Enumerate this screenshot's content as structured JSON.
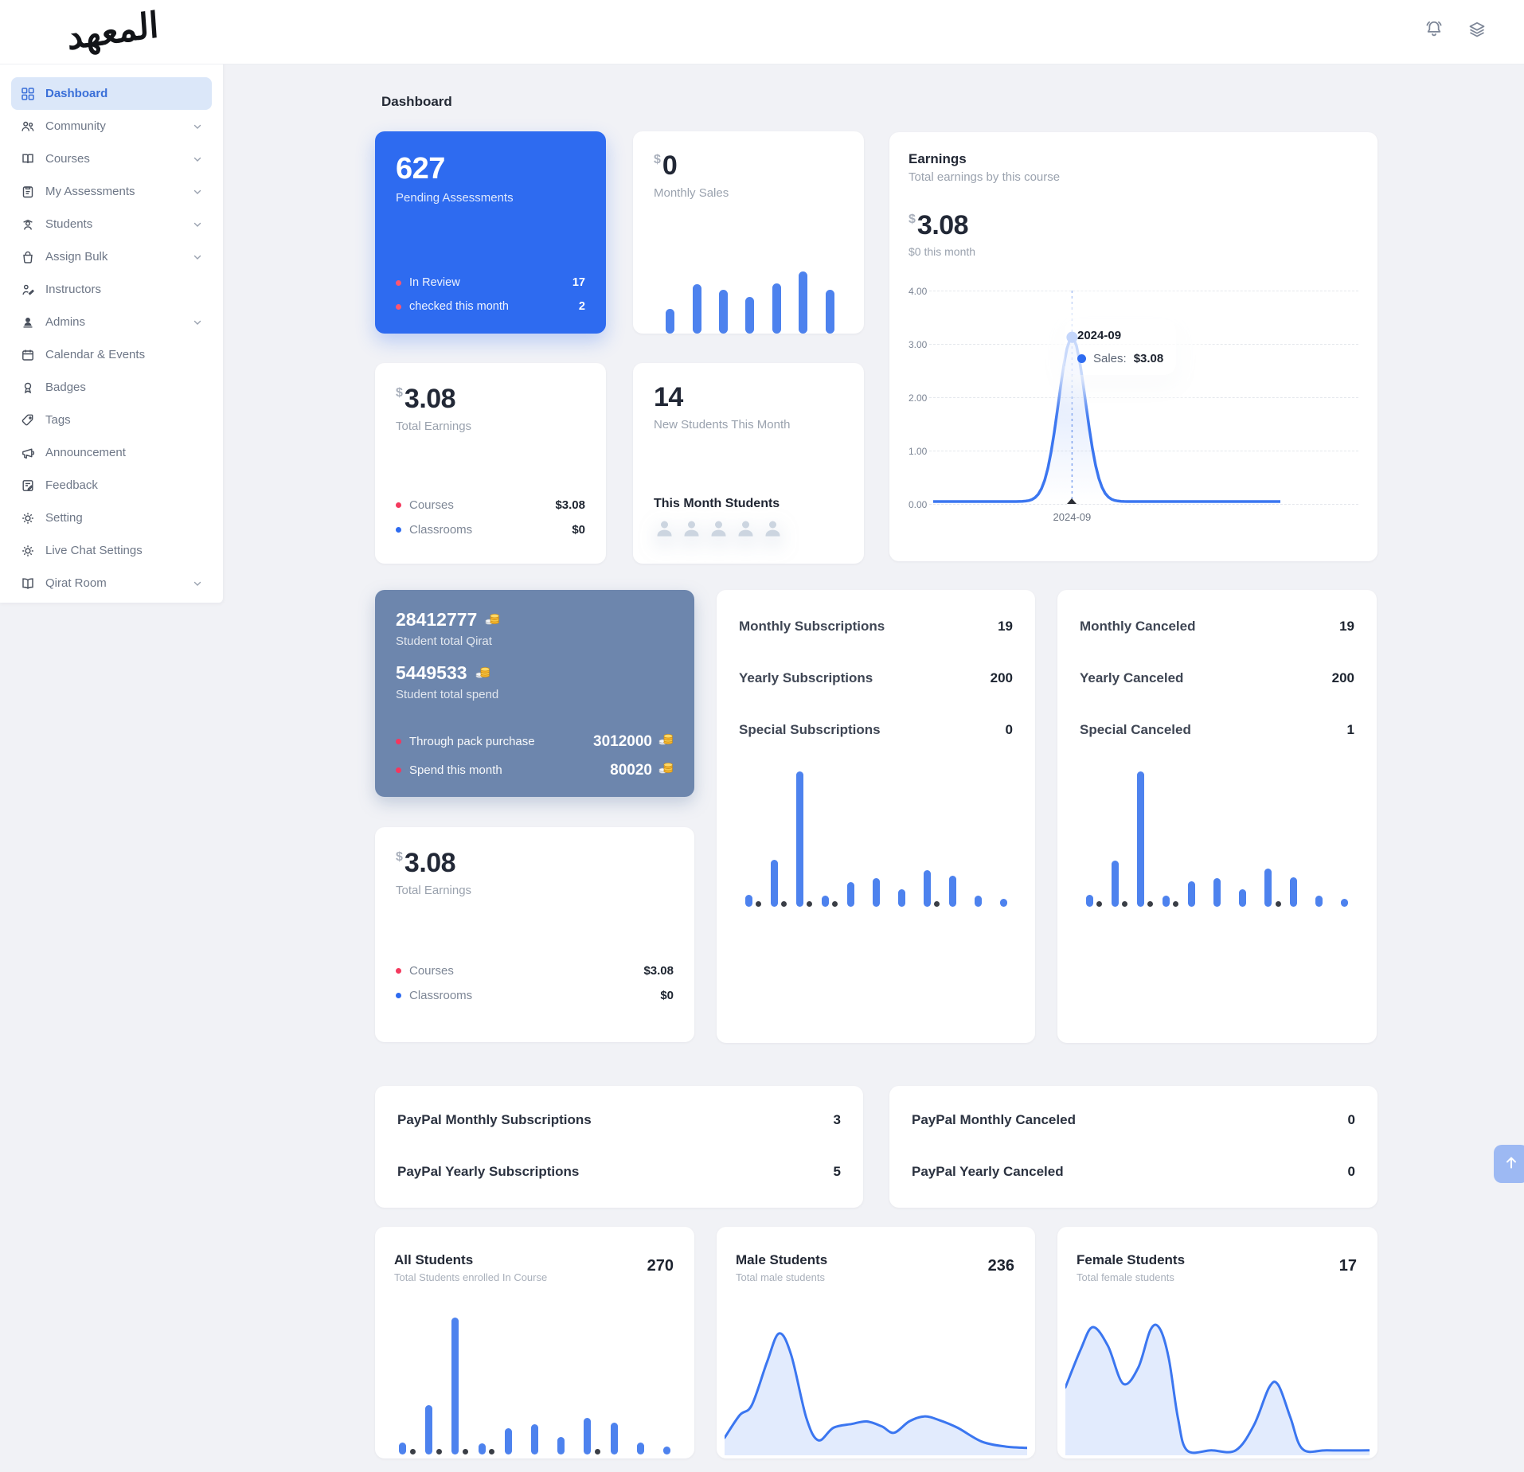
{
  "logo": {
    "text": "المعهد"
  },
  "topbar": {
    "icons": [
      "bell-icon",
      "layers-icon"
    ]
  },
  "page": {
    "title": "Dashboard"
  },
  "sidebar": {
    "items": [
      {
        "label": "Dashboard",
        "icon": "dashboard-icon",
        "active": true,
        "chevron": false
      },
      {
        "label": "Community",
        "icon": "community-icon",
        "chevron": true
      },
      {
        "label": "Courses",
        "icon": "courses-icon",
        "chevron": true
      },
      {
        "label": "My Assessments",
        "icon": "assessments-icon",
        "chevron": true
      },
      {
        "label": "Students",
        "icon": "students-icon",
        "chevron": true
      },
      {
        "label": "Assign Bulk",
        "icon": "assign-bulk-icon",
        "chevron": true
      },
      {
        "label": "Instructors",
        "icon": "instructors-icon",
        "chevron": false
      },
      {
        "label": "Admins",
        "icon": "admins-icon",
        "chevron": true
      },
      {
        "label": "Calendar & Events",
        "icon": "calendar-icon",
        "chevron": false
      },
      {
        "label": "Badges",
        "icon": "badges-icon",
        "chevron": false
      },
      {
        "label": "Tags",
        "icon": "tags-icon",
        "chevron": false
      },
      {
        "label": "Announcement",
        "icon": "announcement-icon",
        "chevron": false
      },
      {
        "label": "Feedback",
        "icon": "feedback-icon",
        "chevron": false
      },
      {
        "label": "Setting",
        "icon": "setting-icon",
        "chevron": false
      },
      {
        "label": "Live Chat Settings",
        "icon": "live-chat-settings-icon",
        "chevron": false
      },
      {
        "label": "Qirat Room",
        "icon": "qirat-room-icon",
        "chevron": true
      }
    ]
  },
  "cards": {
    "pending_assessments": {
      "value": "627",
      "label": "Pending Assessments",
      "rows": [
        {
          "label": "In Review",
          "value": "17"
        },
        {
          "label": "checked this month",
          "value": "2"
        }
      ]
    },
    "monthly_sales": {
      "currency": "$",
      "value": "0",
      "label": "Monthly Sales",
      "chart_data": {
        "type": "bar",
        "values": [
          40,
          80,
          71,
          59,
          81,
          100,
          70
        ]
      }
    },
    "earnings": {
      "title": "Earnings",
      "subtitle": "Total earnings by this course",
      "currency": "$",
      "value": "3.08",
      "this_month": "$0 this month",
      "chart_data": {
        "type": "line",
        "ylim": [
          0,
          4
        ],
        "yticks": [
          "4.00",
          "3.00",
          "2.00",
          "1.00",
          "0.00"
        ],
        "x_tick": "2024-09",
        "peak_value": 3.08,
        "peak_position_pct": 40,
        "tooltip": {
          "title": "2024-09",
          "label": "Sales:",
          "value": "$3.08"
        }
      }
    },
    "total_earnings": {
      "currency": "$",
      "value": "3.08",
      "label": "Total Earnings",
      "rows": [
        {
          "label": "Courses",
          "value": "$3.08",
          "dot": "#f43a5e"
        },
        {
          "label": "Classrooms",
          "value": "$0",
          "dot": "#2e6bf0"
        }
      ]
    },
    "new_students": {
      "value": "14",
      "label": "New Students This Month",
      "subheading": "This Month Students",
      "avatar_count": 5
    },
    "student_qirat": {
      "totals": [
        {
          "value": "28412777",
          "label": "Student total Qirat"
        },
        {
          "value": "5449533",
          "label": "Student total spend"
        }
      ],
      "rows": [
        {
          "label": "Through pack purchase",
          "value": "3012000"
        },
        {
          "label": "Spend this month",
          "value": "80020"
        }
      ]
    },
    "subscriptions": {
      "rows": [
        {
          "label": "Monthly Subscriptions",
          "value": "19"
        },
        {
          "label": "Yearly Subscriptions",
          "value": "200"
        },
        {
          "label": "Special Subscriptions",
          "value": "0"
        }
      ],
      "chart_data": {
        "type": "bar",
        "values": [
          9,
          35,
          100,
          8,
          18,
          21,
          13,
          27,
          23,
          8,
          6
        ],
        "dot_indices": [
          0,
          1,
          2,
          3,
          7
        ]
      }
    },
    "canceled": {
      "rows": [
        {
          "label": "Monthly Canceled",
          "value": "19"
        },
        {
          "label": "Yearly Canceled",
          "value": "200"
        },
        {
          "label": "Special Canceled",
          "value": "1"
        }
      ],
      "chart_data": {
        "type": "bar",
        "values": [
          9,
          34,
          100,
          8,
          19,
          21,
          13,
          28,
          22,
          8,
          6
        ],
        "dot_indices": [
          0,
          1,
          2,
          3,
          7
        ]
      }
    },
    "total_earnings_2": {
      "currency": "$",
      "value": "3.08",
      "label": "Total Earnings",
      "rows": [
        {
          "label": "Courses",
          "value": "$3.08",
          "dot": "#f43a5e"
        },
        {
          "label": "Classrooms",
          "value": "$0",
          "dot": "#2e6bf0"
        }
      ]
    },
    "paypal_subscriptions": {
      "rows": [
        {
          "label": "PayPal Monthly Subscriptions",
          "value": "3"
        },
        {
          "label": "PayPal Yearly Subscriptions",
          "value": "5"
        }
      ]
    },
    "paypal_canceled": {
      "rows": [
        {
          "label": "PayPal Monthly Canceled",
          "value": "0"
        },
        {
          "label": "PayPal Yearly Canceled",
          "value": "0"
        }
      ]
    },
    "all_students": {
      "title": "All Students",
      "subtitle": "Total Students enrolled In Course",
      "value": "270",
      "chart_data": {
        "type": "bar",
        "values": [
          9,
          36,
          100,
          8,
          19,
          22,
          13,
          27,
          23,
          9,
          6
        ],
        "dot_indices": [
          0,
          1,
          2,
          3,
          7
        ]
      }
    },
    "male_students": {
      "title": "Male Students",
      "subtitle": "Total male students",
      "value": "236",
      "chart_data": {
        "type": "area",
        "points": [
          [
            0,
            12
          ],
          [
            5,
            30
          ],
          [
            9,
            38
          ],
          [
            14,
            72
          ],
          [
            18,
            95
          ],
          [
            22,
            78
          ],
          [
            27,
            28
          ],
          [
            31,
            10
          ],
          [
            36,
            20
          ],
          [
            42,
            23
          ],
          [
            47,
            25
          ],
          [
            52,
            21
          ],
          [
            56,
            16
          ],
          [
            61,
            25
          ],
          [
            66,
            29
          ],
          [
            71,
            26
          ],
          [
            77,
            20
          ],
          [
            85,
            9
          ],
          [
            93,
            5
          ],
          [
            100,
            4
          ]
        ]
      }
    },
    "female_students": {
      "title": "Female Students",
      "subtitle": "Total female students",
      "value": "17",
      "chart_data": {
        "type": "area",
        "points": [
          [
            0,
            52
          ],
          [
            5,
            82
          ],
          [
            9,
            100
          ],
          [
            14,
            85
          ],
          [
            19,
            55
          ],
          [
            24,
            68
          ],
          [
            28,
            98
          ],
          [
            31,
            99
          ],
          [
            34,
            75
          ],
          [
            37,
            28
          ],
          [
            40,
            2
          ],
          [
            48,
            2
          ],
          [
            56,
            2
          ],
          [
            62,
            22
          ],
          [
            67,
            52
          ],
          [
            70,
            54
          ],
          [
            74,
            28
          ],
          [
            78,
            3
          ],
          [
            86,
            2
          ],
          [
            100,
            2
          ]
        ]
      }
    }
  },
  "colors": {
    "accent": "#2e6bf0",
    "bar_blue": "#4d82ee",
    "chart_line": "#3b76f0",
    "red_dot": "#f43a5e",
    "slate_card": "#6d86ad",
    "active_nav_bg": "#dbe7f9",
    "active_nav_text": "#3a6fd8"
  }
}
